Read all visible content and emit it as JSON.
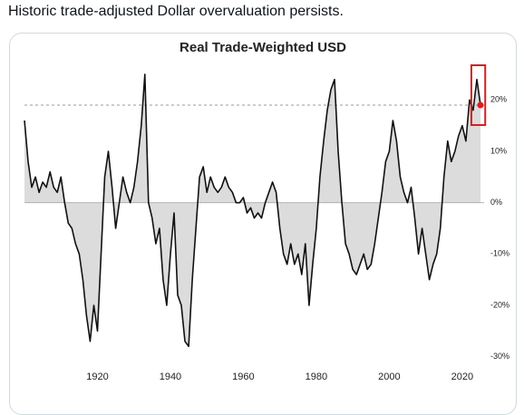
{
  "post_text": "Historic trade-adjusted Dollar overvaluation persists.",
  "chart_data": {
    "type": "line",
    "title": "Real Trade-Weighted USD",
    "x": [
      1900,
      1901,
      1902,
      1903,
      1904,
      1905,
      1906,
      1907,
      1908,
      1909,
      1910,
      1911,
      1912,
      1913,
      1914,
      1915,
      1916,
      1917,
      1918,
      1919,
      1920,
      1921,
      1922,
      1923,
      1924,
      1925,
      1926,
      1927,
      1928,
      1929,
      1930,
      1931,
      1932,
      1933,
      1934,
      1935,
      1936,
      1937,
      1938,
      1939,
      1940,
      1941,
      1942,
      1943,
      1944,
      1945,
      1946,
      1947,
      1948,
      1949,
      1950,
      1951,
      1952,
      1953,
      1954,
      1955,
      1956,
      1957,
      1958,
      1959,
      1960,
      1961,
      1962,
      1963,
      1964,
      1965,
      1966,
      1967,
      1968,
      1969,
      1970,
      1971,
      1972,
      1973,
      1974,
      1975,
      1976,
      1977,
      1978,
      1979,
      1980,
      1981,
      1982,
      1983,
      1984,
      1985,
      1986,
      1987,
      1988,
      1989,
      1990,
      1991,
      1992,
      1993,
      1994,
      1995,
      1996,
      1997,
      1998,
      1999,
      2000,
      2001,
      2002,
      2003,
      2004,
      2005,
      2006,
      2007,
      2008,
      2009,
      2010,
      2011,
      2012,
      2013,
      2014,
      2015,
      2016,
      2017,
      2018,
      2019,
      2020,
      2021,
      2022,
      2023,
      2024,
      2025
    ],
    "series": [
      {
        "name": "Real Trade-Weighted USD",
        "color": "#111111",
        "values": [
          16,
          8,
          3,
          5,
          2,
          4,
          3,
          6,
          3,
          2,
          5,
          0,
          -4,
          -5,
          -8,
          -10,
          -15,
          -22,
          -27,
          -20,
          -25,
          -10,
          5,
          10,
          3,
          -5,
          0,
          5,
          2,
          0,
          3,
          8,
          15,
          25,
          0,
          -3,
          -8,
          -5,
          -15,
          -20,
          -10,
          -2,
          -18,
          -20,
          -27,
          -28,
          -15,
          -5,
          5,
          7,
          2,
          5,
          3,
          2,
          3,
          5,
          3,
          2,
          0,
          0,
          1,
          -2,
          -1,
          -3,
          -2,
          -3,
          0,
          2,
          4,
          2,
          -5,
          -10,
          -12,
          -8,
          -12,
          -10,
          -14,
          -8,
          -20,
          -12,
          -5,
          5,
          12,
          18,
          22,
          24,
          10,
          0,
          -8,
          -10,
          -13,
          -14,
          -12,
          -10,
          -13,
          -12,
          -8,
          -3,
          2,
          8,
          10,
          16,
          12,
          5,
          2,
          0,
          3,
          -3,
          -10,
          -5,
          -10,
          -15,
          -12,
          -10,
          -5,
          5,
          12,
          8,
          10,
          13,
          15,
          12,
          20,
          18,
          24,
          19
        ]
      }
    ],
    "area_color": "#dcdcdc",
    "xlim": [
      1900,
      2026
    ],
    "xticks": [
      1920,
      1940,
      1960,
      1980,
      2000,
      2020
    ],
    "ylim": [
      -32,
      28
    ],
    "yticks": [
      {
        "value": 20,
        "label": "20%"
      },
      {
        "value": 10,
        "label": "10%"
      },
      {
        "value": 0,
        "label": "0%"
      },
      {
        "value": -10,
        "label": "-10%"
      },
      {
        "value": -20,
        "label": "-20%"
      },
      {
        "value": -30,
        "label": "-30%"
      }
    ],
    "reference_line": 19,
    "highlight_xlim": [
      2022.5,
      2026.3
    ],
    "highlight_color": "#d62020",
    "end_marker_color": "#e01b1b"
  }
}
